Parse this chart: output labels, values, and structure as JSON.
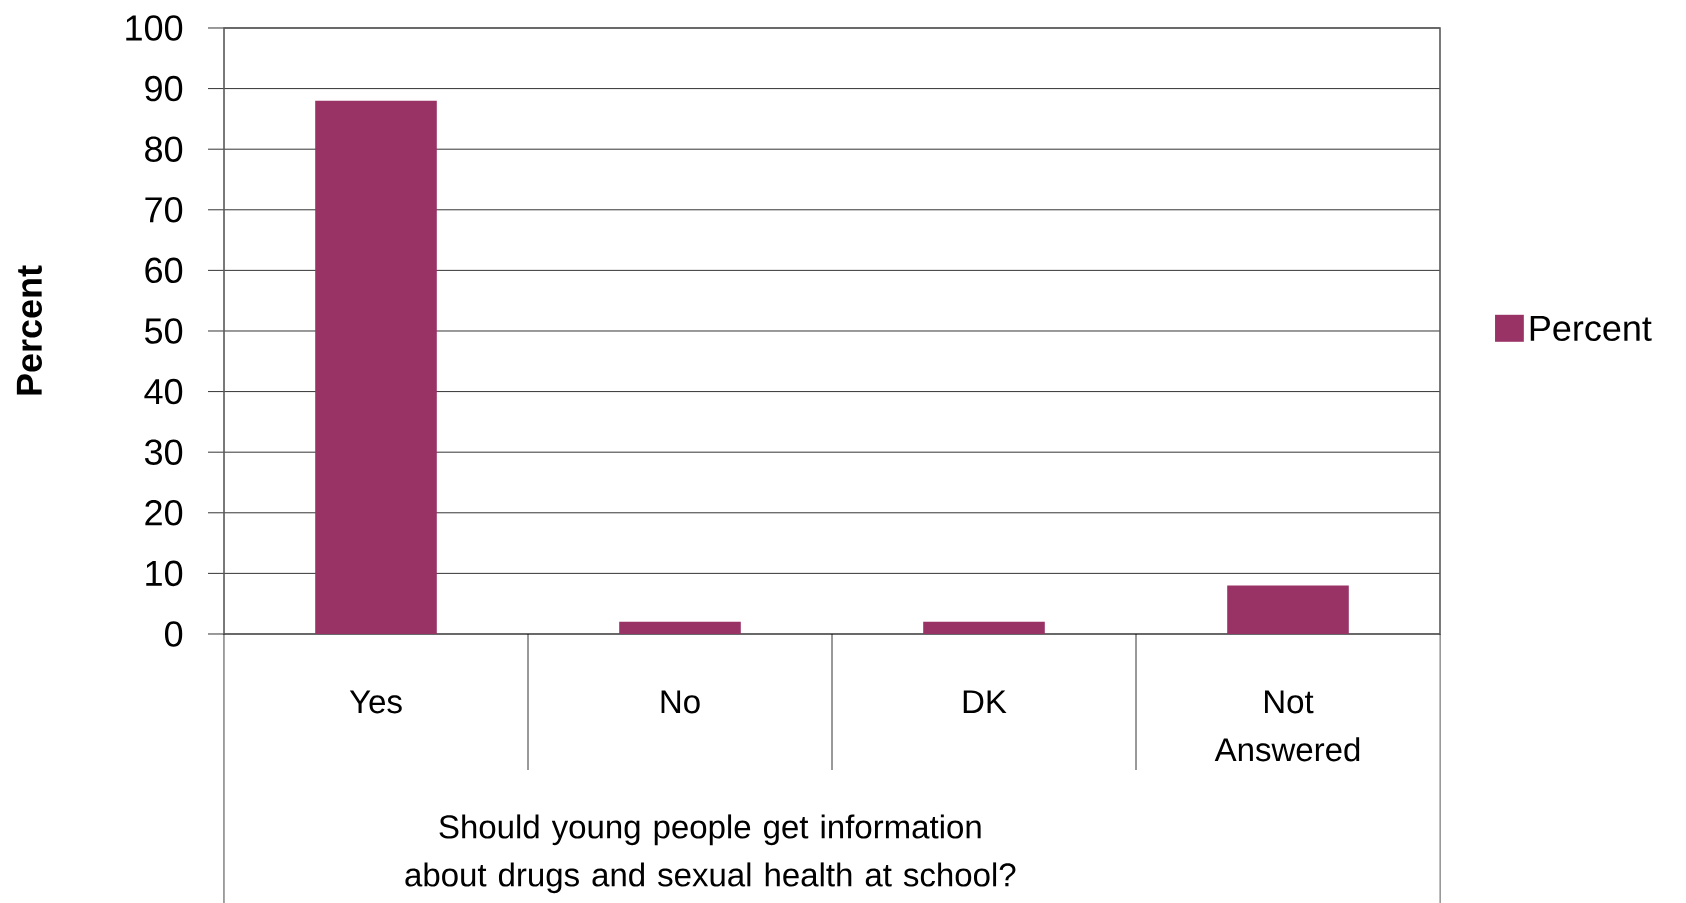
{
  "chart_data": {
    "type": "bar",
    "xlabel": "Should young people get information about drugs and sexual health at school?",
    "ylabel": "Percent",
    "categories": [
      "Yes",
      "No",
      "DK",
      "Not Answered"
    ],
    "series": [
      {
        "name": "Percent",
        "color": "#993366",
        "values": [
          88,
          2,
          2,
          8
        ]
      }
    ],
    "ylim": [
      0,
      100
    ],
    "yticks": [
      0,
      10,
      20,
      30,
      40,
      50,
      60,
      70,
      80,
      90,
      100
    ],
    "grid": "y",
    "legend": "right"
  }
}
